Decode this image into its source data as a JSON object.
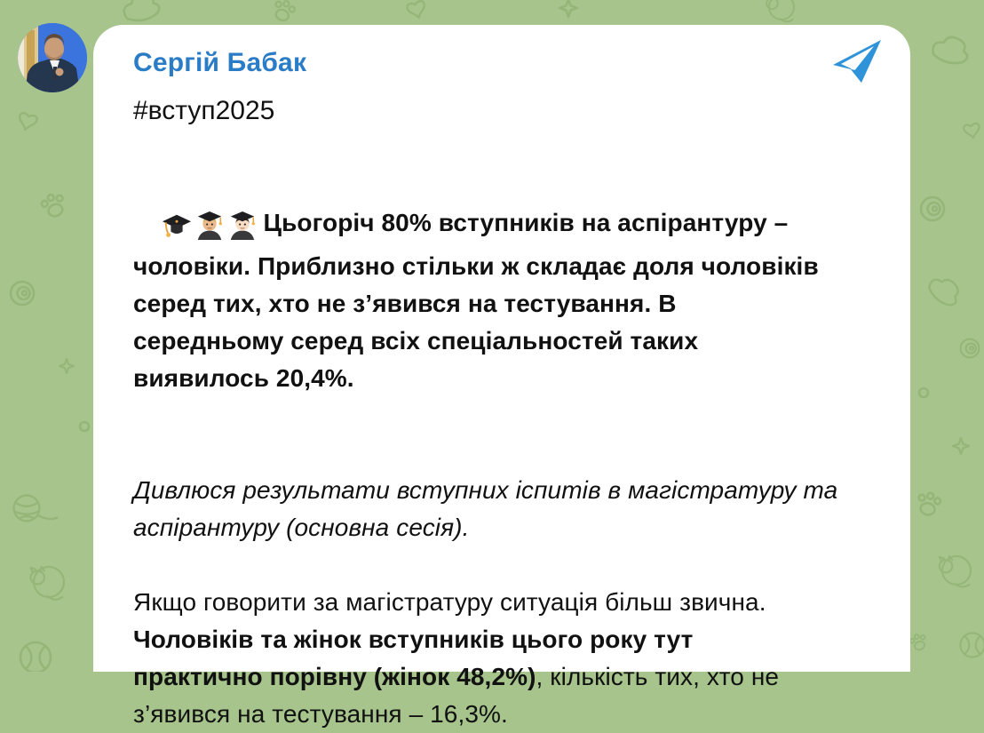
{
  "colors": {
    "background": "#a6c48c",
    "doodle": "#93b377",
    "bubble": "#ffffff",
    "author_name": "#2b7cc7",
    "text": "#111111",
    "plane_icon": "#2e93d9"
  },
  "post": {
    "author": "Сергій Бабак",
    "hashtag": "#вступ2025",
    "emojis": "🎓👨🏼‍🎓👨🏻‍🎓",
    "paragraph1_lines": [
      "Цьогоріч 80% вступників на аспірантуру –",
      "чоловіки. Приблизно стільки ж складає доля чоловіків",
      "серед тих, хто не з’явився на тестування. В",
      "середньому серед всіх спеціальностей таких",
      "виявилось 20,4%."
    ],
    "paragraph2_lines": [
      "Дивлюся результати вступних іспитів в магістратуру та",
      "аспірантуру (основна сесія)."
    ],
    "paragraph3_lines": [
      [
        {
          "text": "Якщо говорити за магістратуру ситуація більш звична.",
          "bold": false
        }
      ],
      [
        {
          "text": "Чоловіків та жінок вступників цього року тут",
          "bold": true
        }
      ],
      [
        {
          "text": "практично порівну (жінок 48,2%)",
          "bold": true
        },
        {
          "text": ", кількість тих, хто не",
          "bold": false
        }
      ],
      [
        {
          "text": "з’явився на тестування – 16,3%.",
          "bold": false
        }
      ]
    ],
    "avatar_description": "man in dark suit in front of blue and yellow backdrop"
  },
  "icons": {
    "telegram_plane": "paper-plane",
    "emoji_1": "graduation-cap",
    "emoji_2": "man-student-medium-light-skin",
    "emoji_3": "man-student-light-skin"
  }
}
